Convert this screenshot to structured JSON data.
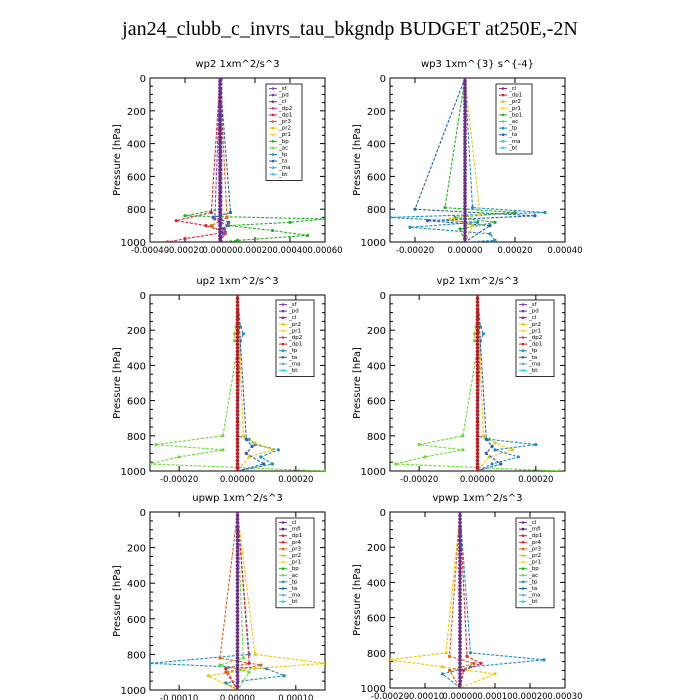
{
  "title": "jan24_clubb_c_invrs_tau_bkgndp  BUDGET at250E,-2N",
  "colors": {
    "sf": "#8e44ad",
    "pd": "#7b2fbe",
    "cl": "#7d2d9a",
    "mfl": "#4b1c70",
    "dp2": "#e0338a",
    "dp1": "#e0202e",
    "pr4": "#e0202e",
    "pr3": "#e06010",
    "pr2": "#f5c400",
    "pr1": "#ffd24a",
    "bp": "#22b022",
    "ac": "#66dd33",
    "tp": "#1a8fc7",
    "ta": "#2a60b0",
    "ma": "#4fb0e0",
    "bt": "#30d0f0"
  },
  "chart_data": [
    {
      "type": "line",
      "title": "wp2   1xm^2/s^3",
      "ylabel": "Pressure  [hPa]",
      "ylim": [
        0,
        1000
      ],
      "yticks": [
        "0",
        "200",
        "400",
        "600",
        "800",
        "1000"
      ],
      "xlim": [
        -0.0004,
        0.0006
      ],
      "xticks": [
        "-0.00040",
        "-0.00020",
        "0.00000",
        "0.00020",
        "0.00040",
        "0.00060"
      ],
      "legend": [
        "_sf",
        "_pd",
        "_cl",
        "_dp2",
        "_dp1",
        "_pr3",
        "_pr2",
        "_pr1",
        "_bp",
        "_ac",
        "_tp",
        "_ta",
        "_ma",
        "_bt"
      ],
      "series": [
        {
          "name": "_bp",
          "color": "bp",
          "y": [
            0,
            800,
            840,
            860,
            880,
            900,
            930,
            960,
            990,
            1000
          ],
          "x": [
            0,
            0,
            -0.0002,
            0.0006,
            0.0004,
            5e-05,
            0.0003,
            0.0005,
            0.0001,
            0
          ]
        },
        {
          "name": "_dp1",
          "color": "dp1",
          "y": [
            0,
            820,
            870,
            900,
            940,
            980,
            1000
          ],
          "x": [
            0,
            -5e-05,
            -0.00025,
            -8e-05,
            3e-05,
            -0.0002,
            -0.0003
          ]
        },
        {
          "name": "_pr3",
          "color": "pr3",
          "y": [
            0,
            850,
            900,
            950,
            1000
          ],
          "x": [
            0,
            4e-05,
            -5e-05,
            3e-05,
            0
          ]
        },
        {
          "name": "_ta",
          "color": "ta",
          "y": [
            0,
            820,
            850,
            880,
            920,
            1000
          ],
          "x": [
            0,
            6e-05,
            -4e-05,
            5e-05,
            2e-05,
            0
          ]
        },
        {
          "name": "_sf",
          "color": "sf",
          "y": [
            0,
            860,
            900,
            950,
            1000
          ],
          "x": [
            0,
            -3e-05,
            4e-05,
            2e-05,
            0
          ]
        },
        {
          "name": "_cl",
          "color": "cl",
          "y": [
            0,
            1000
          ],
          "x": [
            1e-05,
            1e-05
          ]
        }
      ]
    },
    {
      "type": "line",
      "title": "wp3   1xm^{3} s^{-4}",
      "ylabel": "Pressure  [hPa]",
      "ylim": [
        0,
        1000
      ],
      "yticks": [
        "0",
        "200",
        "400",
        "600",
        "800",
        "1000"
      ],
      "xlim": [
        -0.0003,
        0.0004
      ],
      "xticks": [
        "-0.00020",
        "0.00000",
        "0.00020",
        "0.00040"
      ],
      "legend": [
        "_cl",
        "_dp1",
        "_pr2",
        "_pr1",
        "_bp1",
        "_ac",
        "_tp",
        "_ta",
        "_ma",
        "_bt"
      ],
      "series": [
        {
          "name": "_tp",
          "color": "tp",
          "y": [
            0,
            790,
            820,
            850,
            880,
            910,
            950,
            990,
            1000
          ],
          "x": [
            0,
            3e-05,
            0.00032,
            -0.0003,
            5e-05,
            -0.00022,
            0.0001,
            0.00012,
            0
          ]
        },
        {
          "name": "_ta",
          "color": "ta",
          "y": [
            0,
            800,
            840,
            870,
            900,
            1000
          ],
          "x": [
            0,
            -0.0002,
            0.00028,
            -0.00015,
            0.0001,
            0
          ]
        },
        {
          "name": "_bp1",
          "color": "bp",
          "y": [
            0,
            790,
            820,
            850,
            880,
            920,
            1000
          ],
          "x": [
            0,
            -8e-05,
            0.0002,
            -4e-05,
            0.00012,
            -2e-05,
            0
          ]
        },
        {
          "name": "_pr2",
          "color": "pr2",
          "y": [
            0,
            830,
            860,
            900,
            1000
          ],
          "x": [
            0,
            6e-05,
            -6e-05,
            3e-05,
            0
          ]
        },
        {
          "name": "_dp1",
          "color": "dp1",
          "y": [
            0,
            1000
          ],
          "x": [
            0,
            0
          ]
        }
      ]
    },
    {
      "type": "line",
      "title": "up2   1xm^2/s^3",
      "ylabel": "Pressure  [hPa]",
      "ylim": [
        0,
        1000
      ],
      "yticks": [
        "0",
        "200",
        "400",
        "600",
        "800",
        "1000"
      ],
      "xlim": [
        -0.0003,
        0.0003
      ],
      "xticks": [
        "-0.00020",
        "0.00000",
        "0.00020"
      ],
      "legend": [
        "_sf",
        "_pd",
        "_cl",
        "_pr2",
        "_pr1",
        "_dp2",
        "_dp1",
        "_tp",
        "_ta",
        "_ma",
        "_bt"
      ],
      "series": [
        {
          "name": "_dp1",
          "color": "ac",
          "y": [
            0,
            180,
            220,
            260,
            300,
            800,
            850,
            880,
            920,
            960,
            1000
          ],
          "x": [
            0,
            -5e-06,
            -1e-05,
            -1e-05,
            0,
            -5e-05,
            -0.00028,
            -5e-05,
            -0.0002,
            -0.0003,
            0.0003
          ]
        },
        {
          "name": "_tp",
          "color": "tp",
          "y": [
            0,
            180,
            220,
            260,
            800,
            820,
            850,
            880,
            920,
            960,
            1000
          ],
          "x": [
            0,
            1e-05,
            2e-05,
            1e-05,
            0,
            4e-05,
            6e-05,
            0.00014,
            8e-05,
            0.00012,
            0
          ]
        },
        {
          "name": "_pr2",
          "color": "pr2",
          "y": [
            0,
            800,
            840,
            880,
            920,
            1000
          ],
          "x": [
            0,
            2e-05,
            6e-05,
            0.00012,
            4e-05,
            0
          ]
        },
        {
          "name": "_ta",
          "color": "ta",
          "y": [
            0,
            820,
            860,
            900,
            960,
            1000
          ],
          "x": [
            0,
            3e-05,
            5e-05,
            3e-05,
            9e-05,
            0
          ]
        },
        {
          "name": "_dp2",
          "color": "dp1",
          "y": [
            0,
            1000
          ],
          "x": [
            0,
            0
          ]
        }
      ]
    },
    {
      "type": "line",
      "title": "vp2   1xm^2/s^3",
      "ylabel": "Pressure  [hPa]",
      "ylim": [
        0,
        1000
      ],
      "yticks": [
        "0",
        "200",
        "400",
        "600",
        "800",
        "1000"
      ],
      "xlim": [
        -0.0003,
        0.0003
      ],
      "xticks": [
        "-0.00020",
        "0.00000",
        "0.00020"
      ],
      "legend": [
        "_sf",
        "_pd",
        "_cl",
        "_pr2",
        "_pr1",
        "_dp2",
        "_dp1",
        "_tp",
        "_ta",
        "_ma",
        "_bt"
      ],
      "series": [
        {
          "name": "_dp1",
          "color": "ac",
          "y": [
            0,
            180,
            220,
            260,
            300,
            800,
            850,
            880,
            920,
            960,
            1000
          ],
          "x": [
            0,
            -5e-06,
            -1e-05,
            -1e-05,
            0,
            -5e-05,
            -0.0002,
            -5e-05,
            -0.00018,
            -0.00028,
            0.00028
          ]
        },
        {
          "name": "_tp",
          "color": "tp",
          "y": [
            0,
            180,
            220,
            260,
            800,
            820,
            850,
            880,
            920,
            960,
            1000
          ],
          "x": [
            0,
            1e-05,
            2e-05,
            1e-05,
            0,
            4e-05,
            0.0002,
            6e-05,
            0.00014,
            5e-05,
            0
          ]
        },
        {
          "name": "_pr2",
          "color": "pr2",
          "y": [
            0,
            800,
            840,
            880,
            920,
            1000
          ],
          "x": [
            0,
            2e-05,
            6e-05,
            0.00012,
            4e-05,
            0
          ]
        },
        {
          "name": "_ta",
          "color": "ta",
          "y": [
            0,
            820,
            860,
            900,
            960,
            1000
          ],
          "x": [
            0,
            3e-05,
            5e-05,
            3e-05,
            8e-05,
            0
          ]
        },
        {
          "name": "_dp2",
          "color": "dp1",
          "y": [
            0,
            1000
          ],
          "x": [
            0,
            0
          ]
        }
      ]
    },
    {
      "type": "line",
      "title": "upwp   1xm^2/s^3",
      "ylabel": "Pressure  [hPa]",
      "ylim": [
        0,
        1000
      ],
      "yticks": [
        "0",
        "200",
        "400",
        "600",
        "800",
        "1000"
      ],
      "xlim": [
        -0.00015,
        0.00015
      ],
      "xticks": [
        "-0.00010",
        "0.00000",
        "0.00010"
      ],
      "legend": [
        "_cl",
        "_mfl",
        "_dp1",
        "_pr4",
        "_pr3",
        "_pr2",
        "_pr1",
        "_bp",
        "_ac",
        "_tp",
        "_ta",
        "_ma",
        "_bt"
      ],
      "series": [
        {
          "name": "_tp",
          "color": "tp",
          "y": [
            0,
            800,
            850,
            880,
            920,
            960,
            1000
          ],
          "x": [
            0,
            2e-05,
            -0.00015,
            5e-05,
            8e-05,
            -2e-05,
            0
          ]
        },
        {
          "name": "_pr2",
          "color": "pr2",
          "y": [
            0,
            800,
            850,
            880,
            920,
            1000
          ],
          "x": [
            0,
            3e-05,
            0.00015,
            3e-05,
            -5e-05,
            0
          ]
        },
        {
          "name": "_pr3",
          "color": "pr3",
          "y": [
            0,
            820,
            860,
            900,
            1000
          ],
          "x": [
            0,
            -3e-05,
            4e-05,
            -2e-05,
            0
          ]
        },
        {
          "name": "_ac",
          "color": "ac",
          "y": [
            0,
            820,
            860,
            900,
            1000
          ],
          "x": [
            0,
            1e-05,
            -3e-05,
            2e-05,
            0
          ]
        },
        {
          "name": "_dp1",
          "color": "dp1",
          "y": [
            0,
            850,
            880,
            1000
          ],
          "x": [
            0,
            2e-05,
            -2e-05,
            0
          ]
        },
        {
          "name": "_cl",
          "color": "cl",
          "y": [
            0,
            1000
          ],
          "x": [
            0,
            0
          ]
        }
      ]
    },
    {
      "type": "line",
      "title": "vpwp   1xm^2/s^3",
      "ylabel": "Pressure  [hPa]",
      "ylim": [
        0,
        1000
      ],
      "yticks": [
        "0",
        "200",
        "400",
        "600",
        "800",
        "1000"
      ],
      "xlim": [
        -0.0002,
        0.0003
      ],
      "xticks": [
        "-0.00020",
        "-0.00010",
        "0.00000",
        "0.00010",
        "0.00020",
        "0.00030"
      ],
      "legend": [
        "_cl",
        "_mfl",
        "_dp1",
        "_pr4",
        "_pr3",
        "_pr2",
        "_pr1",
        "_bp",
        "_ac",
        "_tp",
        "_ta",
        "_ma",
        "_bt"
      ],
      "series": [
        {
          "name": "_pr2",
          "color": "pr2",
          "y": [
            0,
            800,
            840,
            880,
            920,
            1000
          ],
          "x": [
            0,
            -4e-05,
            -0.0002,
            -5e-05,
            0.0001,
            0
          ]
        },
        {
          "name": "_tp",
          "color": "tp",
          "y": [
            0,
            800,
            840,
            880,
            920,
            1000
          ],
          "x": [
            0,
            3e-05,
            0.00024,
            3e-05,
            -5e-05,
            0
          ]
        },
        {
          "name": "_pr3",
          "color": "pr3",
          "y": [
            0,
            820,
            860,
            900,
            1000
          ],
          "x": [
            0,
            -3e-05,
            4e-05,
            -3e-05,
            0
          ]
        },
        {
          "name": "_dp1",
          "color": "dp1",
          "y": [
            0,
            820,
            860,
            900,
            1000
          ],
          "x": [
            0,
            2e-05,
            6e-05,
            1e-05,
            0
          ]
        },
        {
          "name": "_cl",
          "color": "cl",
          "y": [
            0,
            1000
          ],
          "x": [
            0,
            0
          ]
        }
      ]
    }
  ]
}
